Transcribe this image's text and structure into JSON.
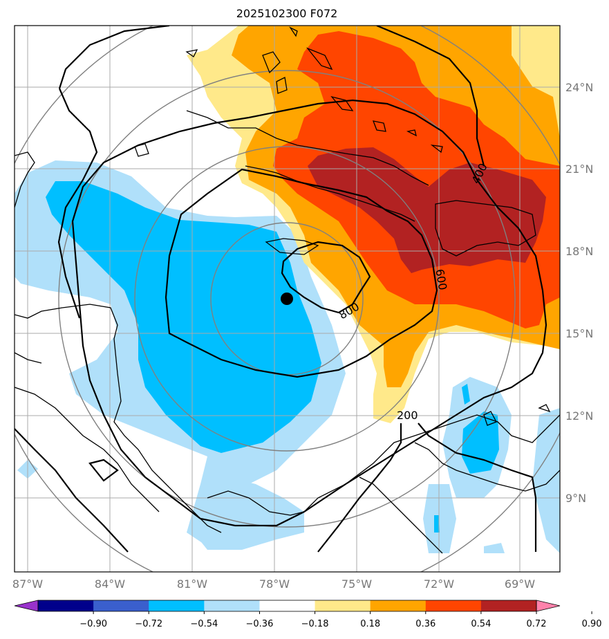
{
  "title": "2025102300 F072",
  "lon_ticks": [
    "87°W",
    "84°W",
    "81°W",
    "78°W",
    "75°W",
    "72°W",
    "69°W"
  ],
  "lat_ticks": [
    "24°N",
    "21°N",
    "18°N",
    "15°N",
    "12°N",
    "9°N"
  ],
  "colorbar": {
    "labels": [
      "−0.90",
      "−0.72",
      "−0.54",
      "−0.36",
      "−0.18",
      "0.18",
      "0.36",
      "0.54",
      "0.72",
      "0.90"
    ],
    "colors": [
      "#9932cc",
      "#00008b",
      "#3a5fcd",
      "#00bfff",
      "#b0e0fa",
      "#ffffff",
      "#ffe98a",
      "#ffa500",
      "#ff4500",
      "#b22222",
      "#ff82ab"
    ]
  },
  "contour_labels": [
    "200",
    "400",
    "600",
    "800"
  ],
  "storm_center": {
    "lon": -77.5,
    "lat": 16.3
  },
  "colors": {
    "coast": "#000000",
    "grid": "#aaaaaa",
    "rings": "#808080"
  }
}
